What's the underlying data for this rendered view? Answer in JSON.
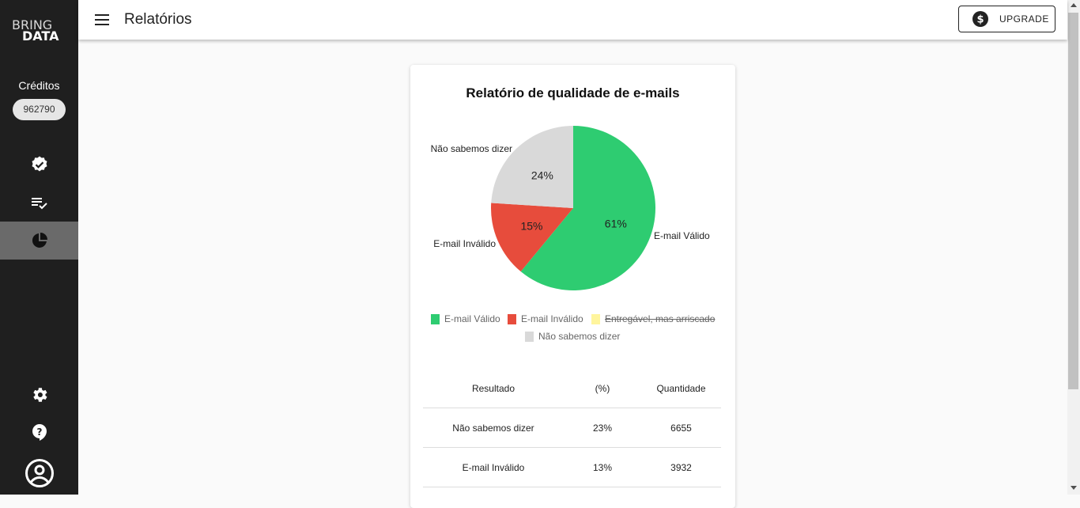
{
  "app": {
    "logo_line1": "BRING",
    "logo_line2": "DATA"
  },
  "sidebar": {
    "credits_label": "Créditos",
    "credits_value": "962790",
    "items": [
      {
        "icon": "verified-badge-icon",
        "active": false
      },
      {
        "icon": "checklist-icon",
        "active": false
      },
      {
        "icon": "pie-chart-icon",
        "active": true
      },
      {
        "icon": "settings-gear-icon",
        "active": false
      },
      {
        "icon": "help-icon",
        "active": false
      },
      {
        "icon": "account-circle-icon",
        "active": false
      }
    ]
  },
  "header": {
    "title": "Relatórios",
    "upgrade_label": "UPGRADE",
    "upgrade_icon": "dollar-circle-icon"
  },
  "colors": {
    "valid": "#2ecc71",
    "invalid": "#e74c3c",
    "risky": "#fff59d",
    "unknown": "#d9d9d9",
    "sidebar": "#1f1f1f",
    "sidebar_active": "#6a6a6a"
  },
  "chart_data": {
    "type": "pie",
    "title": "Relatório de qualidade de e-mails",
    "slices": [
      {
        "label": "E-mail Válido",
        "value": 61,
        "display": "61%",
        "color": "#2ecc71"
      },
      {
        "label": "E-mail Inválido",
        "value": 15,
        "display": "15%",
        "color": "#e74c3c"
      },
      {
        "label": "Não sabemos dizer",
        "value": 24,
        "display": "24%",
        "color": "#d9d9d9"
      }
    ],
    "legend": [
      {
        "label": "E-mail Válido",
        "color": "#2ecc71",
        "hidden": false
      },
      {
        "label": "E-mail Inválido",
        "color": "#e74c3c",
        "hidden": false
      },
      {
        "label": "Entregável, mas arriscado",
        "color": "#fff59d",
        "hidden": true
      },
      {
        "label": "Não sabemos dizer",
        "color": "#d9d9d9",
        "hidden": false
      }
    ],
    "legend_position": "bottom"
  },
  "table": {
    "headers": [
      "Resultado",
      "(%)",
      "Quantidade"
    ],
    "rows": [
      [
        "Não sabemos dizer",
        "23%",
        "6655"
      ],
      [
        "E-mail Inválido",
        "13%",
        "3932"
      ]
    ]
  }
}
